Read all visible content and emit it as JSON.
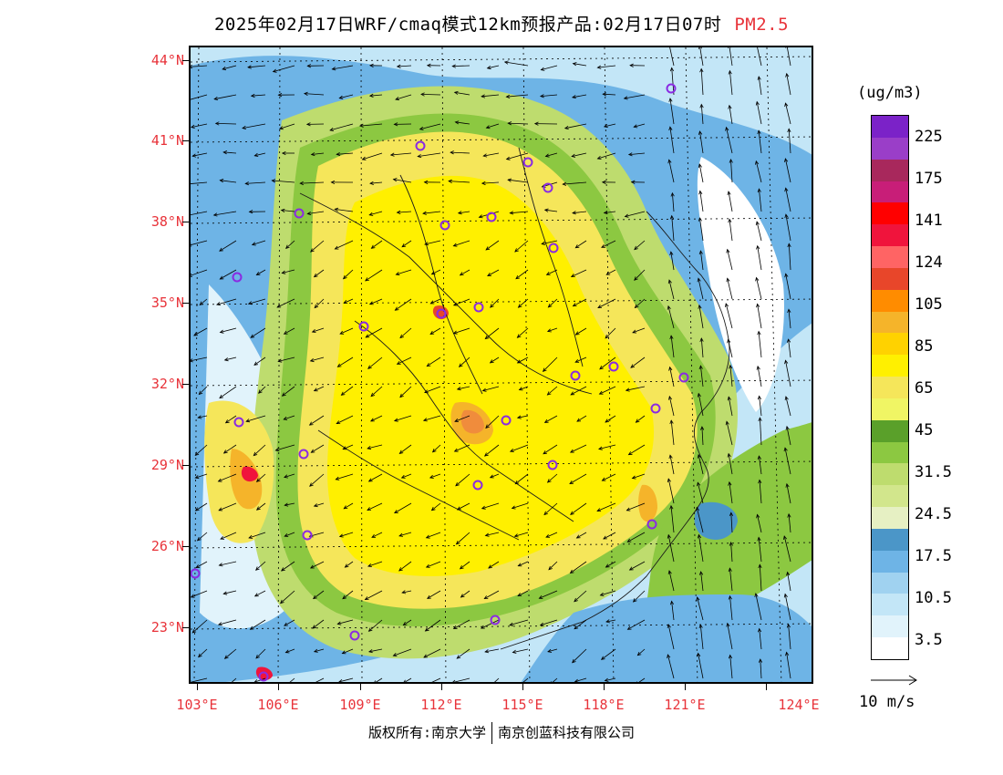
{
  "title": "2025年02月17日WRF/cmaq模式12km预报产品:02月17日07时",
  "pollutant": "PM2.5",
  "map": {
    "lat_labels": [
      "44°N",
      "41°N",
      "38°N",
      "35°N",
      "32°N",
      "29°N",
      "26°N",
      "23°N"
    ],
    "lon_labels": [
      "103°E",
      "106°E",
      "109°E",
      "112°E",
      "115°E",
      "118°E",
      "121°E",
      "124°E"
    ],
    "colors": {
      "clean": "#ffffff",
      "low_blue": "#a9dcf2",
      "mid_blue": "#5aa6d6",
      "green_light": "#bfdc6e",
      "green": "#78b84a",
      "yellow": "#fff04a",
      "gold": "#f5c94a",
      "orange": "#f08c3c",
      "red": "#e83a4a",
      "city_marker": "#8a2be2"
    }
  },
  "legend": {
    "unit": "(ug/m3)",
    "labels": [
      "225",
      "175",
      "141",
      "124",
      "105",
      "85",
      "65",
      "45",
      "31.5",
      "24.5",
      "17.5",
      "10.5",
      "3.5"
    ],
    "colors": [
      "#7b22c8",
      "#9a3ec8",
      "#a8285c",
      "#c81e78",
      "#ff0000",
      "#f0143c",
      "#ff6464",
      "#e8462a",
      "#ff8c00",
      "#f5b42a",
      "#ffd200",
      "#fff000",
      "#f5e65a",
      "#f0f564",
      "#5aa02a",
      "#8cc841",
      "#bedc6e",
      "#d2e68c",
      "#e6f0c3",
      "#4b96c8",
      "#6eb4e6",
      "#a0d2f0",
      "#c3e6f7",
      "#e1f3fb",
      "#ffffff"
    ]
  },
  "vector_reference": "10 m/s",
  "copyright": {
    "left": "版权所有:南京大学",
    "right": "南京创蓝科技有限公司"
  }
}
